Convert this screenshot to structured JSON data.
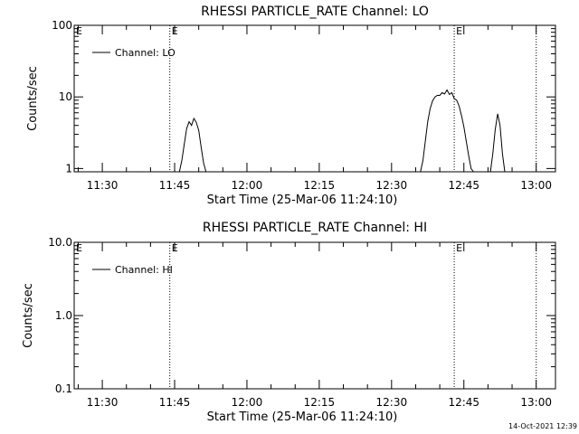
{
  "footer": {
    "timestamp": "14-Oct-2021 12:39"
  },
  "chart_data": [
    {
      "type": "line",
      "title": "RHESSI PARTICLE_RATE Channel: LO",
      "xlabel": "Start Time (25-Mar-06 11:24:10)",
      "ylabel": "Counts/sec",
      "yscale": "log",
      "ylim": [
        0.9,
        100
      ],
      "xlim": [
        "11:24:10",
        "13:04"
      ],
      "x_ticks": [
        "11:30",
        "11:45",
        "12:00",
        "12:15",
        "12:30",
        "12:45",
        "13:00"
      ],
      "y_ticks": [
        {
          "value": 1,
          "label": "1"
        },
        {
          "value": 10,
          "label": "10"
        },
        {
          "value": 100,
          "label": "100"
        }
      ],
      "markers": [
        {
          "time": "11:44",
          "label": "E"
        },
        {
          "time": "12:43",
          "label": "E"
        },
        {
          "time": "13:00",
          "label": ""
        }
      ],
      "legend": {
        "position": "top-left",
        "label": "Channel: LO"
      },
      "series": [
        {
          "name": "Channel: LO",
          "points": [
            [
              "11:46:00",
              0.9
            ],
            [
              "11:46:30",
              1.3
            ],
            [
              "11:47:00",
              2.2
            ],
            [
              "11:47:30",
              3.6
            ],
            [
              "11:48:00",
              4.5
            ],
            [
              "11:48:30",
              4.0
            ],
            [
              "11:49:00",
              5.0
            ],
            [
              "11:49:30",
              4.4
            ],
            [
              "11:50:00",
              3.4
            ],
            [
              "11:50:30",
              2.0
            ],
            [
              "11:51:00",
              1.2
            ],
            [
              "11:51:30",
              0.9
            ],
            null,
            [
              "12:36:00",
              0.9
            ],
            [
              "12:36:30",
              1.3
            ],
            [
              "12:37:00",
              2.4
            ],
            [
              "12:37:30",
              4.5
            ],
            [
              "12:38:00",
              6.8
            ],
            [
              "12:38:30",
              8.8
            ],
            [
              "12:39:00",
              10.0
            ],
            [
              "12:39:30",
              10.5
            ],
            [
              "12:40:00",
              10.5
            ],
            [
              "12:40:30",
              11.5
            ],
            [
              "12:41:00",
              11.0
            ],
            [
              "12:41:30",
              12.5
            ],
            [
              "12:42:00",
              10.8
            ],
            [
              "12:42:30",
              11.5
            ],
            [
              "12:43:00",
              9.5
            ],
            [
              "12:43:30",
              9.0
            ],
            [
              "12:44:00",
              7.5
            ],
            [
              "12:44:30",
              5.5
            ],
            [
              "12:45:00",
              3.8
            ],
            [
              "12:45:30",
              2.4
            ],
            [
              "12:46:00",
              1.5
            ],
            [
              "12:46:30",
              1.0
            ],
            [
              "12:47:00",
              0.9
            ],
            null,
            [
              "12:50:30",
              0.9
            ],
            [
              "12:51:00",
              1.6
            ],
            [
              "12:51:30",
              3.5
            ],
            [
              "12:52:00",
              5.8
            ],
            [
              "12:52:30",
              4.0
            ],
            [
              "12:53:00",
              1.6
            ],
            [
              "12:53:30",
              0.9
            ]
          ]
        }
      ]
    },
    {
      "type": "line",
      "title": "RHESSI PARTICLE_RATE Channel: HI",
      "xlabel": "Start Time (25-Mar-06 11:24:10)",
      "ylabel": "Counts/sec",
      "yscale": "log",
      "ylim": [
        0.1,
        10
      ],
      "xlim": [
        "11:24:10",
        "13:04"
      ],
      "x_ticks": [
        "11:30",
        "11:45",
        "12:00",
        "12:15",
        "12:30",
        "12:45",
        "13:00"
      ],
      "y_ticks": [
        {
          "value": 0.1,
          "label": "0.1"
        },
        {
          "value": 1,
          "label": "1.0"
        },
        {
          "value": 10,
          "label": "10.0"
        }
      ],
      "markers": [
        {
          "time": "11:44",
          "label": "E"
        },
        {
          "time": "12:43",
          "label": "E"
        },
        {
          "time": "13:00",
          "label": ""
        }
      ],
      "legend": {
        "position": "top-left",
        "label": "Channel: HI"
      },
      "series": [
        {
          "name": "Channel: HI",
          "points": []
        }
      ]
    }
  ]
}
